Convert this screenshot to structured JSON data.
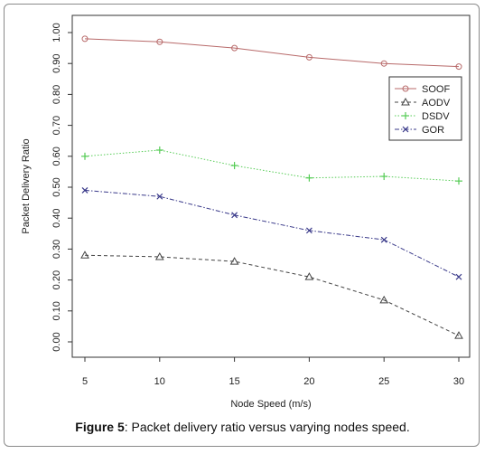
{
  "chart_data": {
    "type": "line",
    "title": "",
    "xlabel": "Node Speed (m/s)",
    "ylabel": "Packet Delivery Ratio",
    "x": [
      5,
      10,
      15,
      20,
      25,
      30
    ],
    "xlim": [
      5,
      30
    ],
    "ylim": [
      0,
      1
    ],
    "x_ticks": [
      "5",
      "10",
      "15",
      "20",
      "25",
      "30"
    ],
    "y_ticks": [
      "0.00",
      "0.10",
      "0.20",
      "0.30",
      "0.40",
      "0.50",
      "0.60",
      "0.70",
      "0.80",
      "0.90",
      "1.00"
    ],
    "grid": false,
    "legend_position": "top-right",
    "series": [
      {
        "name": "SOOF",
        "values": [
          0.98,
          0.97,
          0.95,
          0.92,
          0.9,
          0.89
        ],
        "color": "#b86a6a",
        "dash": "solid",
        "marker": "circle"
      },
      {
        "name": "AODV",
        "values": [
          0.28,
          0.275,
          0.26,
          0.21,
          0.135,
          0.02
        ],
        "color": "#444444",
        "dash": "dashed",
        "marker": "triangle"
      },
      {
        "name": "DSDV",
        "values": [
          0.6,
          0.62,
          0.57,
          0.53,
          0.535,
          0.52
        ],
        "color": "#55cc55",
        "dash": "dotted",
        "marker": "plus"
      },
      {
        "name": "GOR",
        "values": [
          0.49,
          0.47,
          0.41,
          0.36,
          0.33,
          0.21
        ],
        "color": "#3a3a8a",
        "dash": "dashdot",
        "marker": "x"
      }
    ]
  },
  "caption": {
    "label": "Figure 5",
    "text": ": Packet delivery ratio versus varying nodes speed."
  }
}
